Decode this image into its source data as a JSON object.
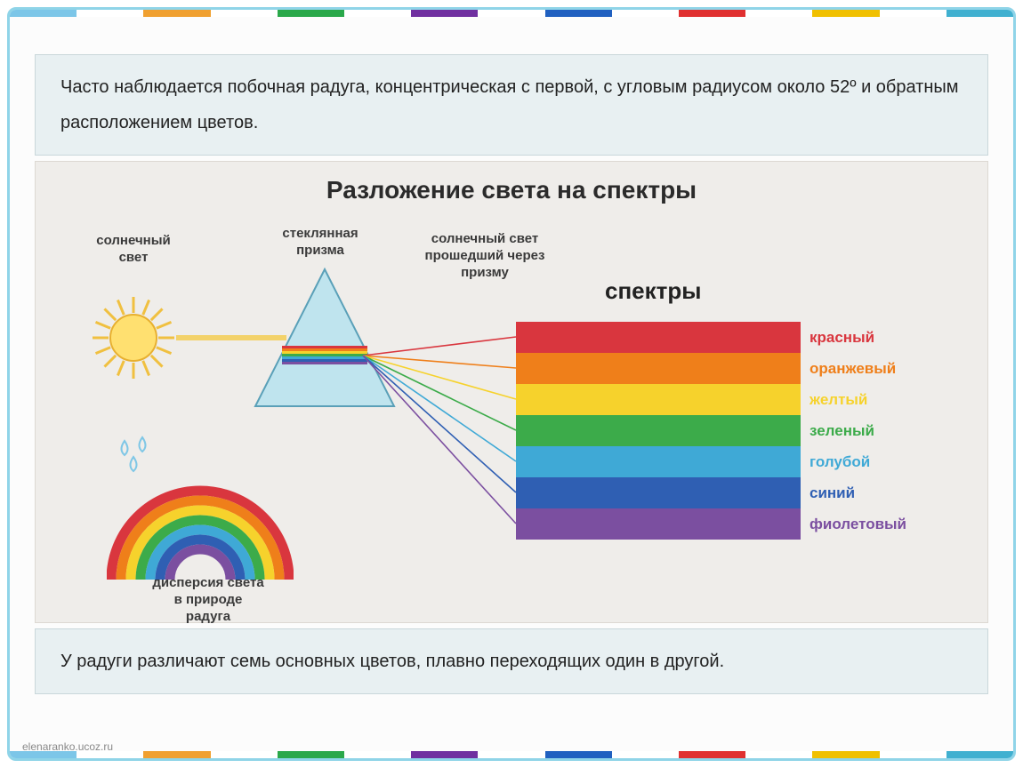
{
  "frame": {
    "border_color": "#8fd4e8",
    "top_segments": [
      "#7cc6e8",
      "#ffffff",
      "#f0a030",
      "#ffffff",
      "#2aa84a",
      "#ffffff",
      "#7030a0",
      "#ffffff",
      "#2060c0",
      "#ffffff",
      "#e03030",
      "#ffffff",
      "#f0c000",
      "#ffffff",
      "#40b0d0"
    ]
  },
  "top_text": "Часто наблюдается побочная радуга, концентрическая  с первой, с угловым радиусом около 52º и обратным расположением цветов.",
  "bottom_text": "У радуги различают семь основных цветов, плавно переходящих один в другой.",
  "diagram": {
    "bg": "#efedea",
    "title": "Разложение света на спектры",
    "title_fontsize": 28,
    "label_fontsize": 15,
    "sun": {
      "label": "солнечный\nсвет",
      "body_color": "#ffe070",
      "outline": "#e8b030",
      "ray_color": "#f0c040"
    },
    "prism": {
      "label": "стеклянная\nпризма",
      "fill": "#bfe4ee",
      "stroke": "#5aa0b8"
    },
    "passed_label": "солнечный свет\nпрошедший через\nпризму",
    "rainbow_arc": {
      "label": "дисперсия света\nв природе\nрадуга",
      "colors": [
        "#d9363e",
        "#ef7f1a",
        "#f6d22c",
        "#3cab4a",
        "#3fa9d6",
        "#2f5fb3",
        "#7b4fa0"
      ]
    },
    "drops_color": "#7fc7e6",
    "spectrum_title": "спектры",
    "spectrum": [
      {
        "name": "красный",
        "hex": "#d9363e"
      },
      {
        "name": "оранжевый",
        "hex": "#ef7f1a"
      },
      {
        "name": "желтый",
        "hex": "#f6d22c"
      },
      {
        "name": "зеленый",
        "hex": "#3cab4a"
      },
      {
        "name": "голубой",
        "hex": "#3fa9d6"
      },
      {
        "name": "синий",
        "hex": "#2f5fb3"
      },
      {
        "name": "фиолетовый",
        "hex": "#7b4fa0"
      }
    ],
    "incoming_beam_color": "#f3d26a",
    "dispersed_line_width": 1.6
  },
  "watermark": "elenaranko.ucoz.ru"
}
